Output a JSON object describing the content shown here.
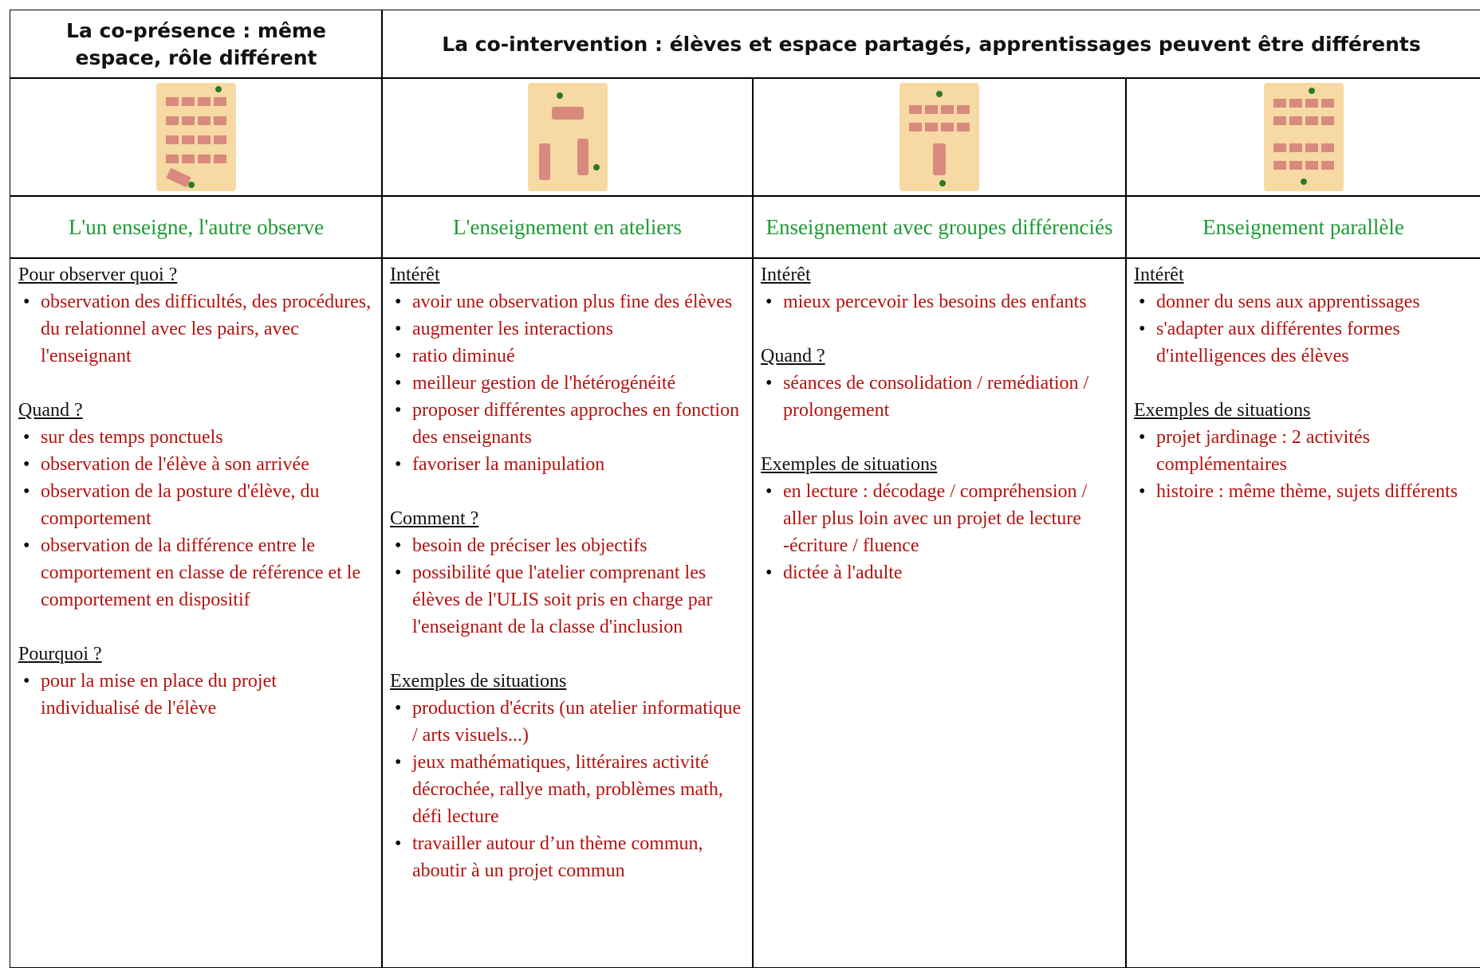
{
  "header": {
    "presence": "La co-présence : même espace, rôle différent",
    "intervention": "La co-intervention : élèves et espace partagés, apprentissages peuvent être différents"
  },
  "columns": [
    {
      "title": "L'un enseigne, l'autre observe",
      "sections": [
        {
          "heading": "Pour observer quoi ?",
          "items": [
            "observation des difficultés, des procédures, du relationnel avec les pairs, avec l'enseignant"
          ]
        },
        {
          "heading": "Quand ?",
          "items": [
            "sur des temps ponctuels",
            "observation de l'élève à son arrivée",
            "observation de la posture d'élève, du comportement",
            "observation de la différence entre le comportement en classe de référence et le comportement en dispositif"
          ]
        },
        {
          "heading": "Pourquoi ?",
          "items": [
            "pour la mise en place du projet individualisé de l'élève"
          ]
        }
      ]
    },
    {
      "title": "L'enseignement en ateliers",
      "sections": [
        {
          "heading": "Intérêt",
          "items": [
            "avoir une observation plus fine des élèves",
            "augmenter les interactions",
            "ratio diminué",
            "meilleur gestion de l'hétérogénéité",
            "proposer différentes approches en fonction des enseignants",
            "favoriser la manipulation"
          ]
        },
        {
          "heading": "Comment ?",
          "items": [
            "besoin de préciser les objectifs",
            "possibilité que l'atelier comprenant les élèves de l'ULIS soit pris en charge par l'enseignant de la classe d'inclusion"
          ]
        },
        {
          "heading": "Exemples de situations",
          "items": [
            "production d'écrits (un atelier informatique / arts visuels...)",
            "jeux mathématiques, littéraires activité décrochée, rallye math, problèmes math, défi lecture",
            "travailler autour d’un thème commun, aboutir à un projet commun"
          ]
        }
      ]
    },
    {
      "title": "Enseignement avec groupes différenciés",
      "sections": [
        {
          "heading": "Intérêt",
          "items": [
            "mieux percevoir les besoins des enfants"
          ]
        },
        {
          "heading": "Quand ?",
          "items": [
            "séances de consolidation / remédiation / prolongement"
          ]
        },
        {
          "heading": "Exemples de situations",
          "items": [
            "en lecture : décodage / compréhension / aller plus loin avec un projet de lecture -écriture / fluence",
            "dictée à l'adulte"
          ]
        }
      ]
    },
    {
      "title": "Enseignement parallèle",
      "sections": [
        {
          "heading": "Intérêt",
          "items": [
            "donner du sens aux apprentissages",
            "s'adapter aux différentes formes d'intelligences des élèves"
          ]
        },
        {
          "heading": "Exemples de situations",
          "items": [
            "projet jardinage : 2 activités complémentaires",
            "histoire : même thème, sujets différents"
          ]
        }
      ]
    }
  ]
}
